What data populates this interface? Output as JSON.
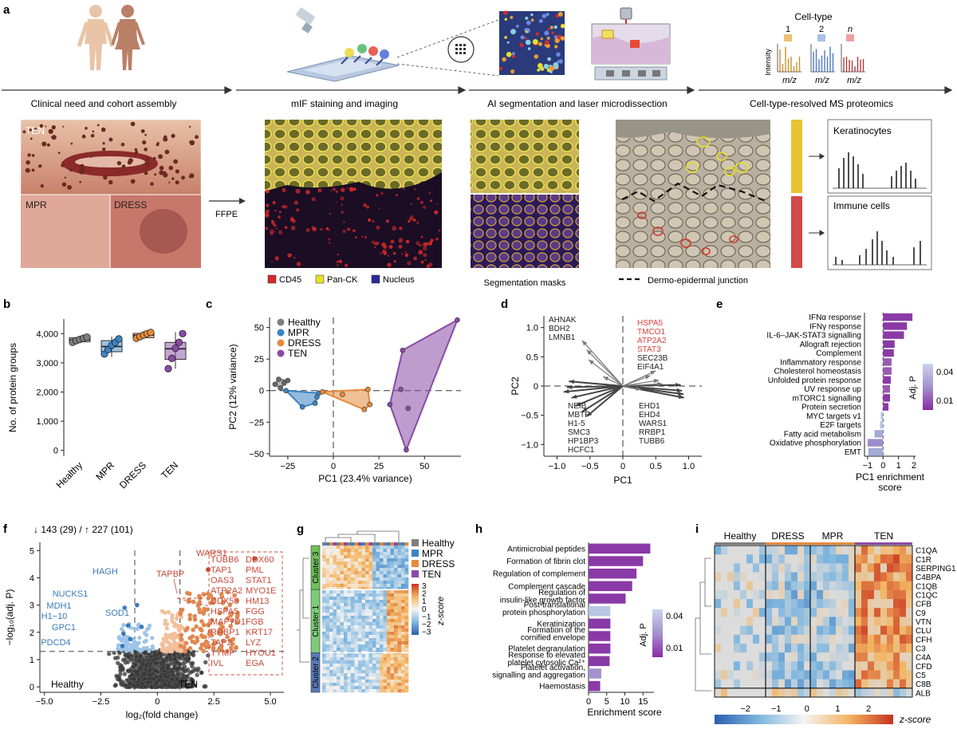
{
  "panel_letters": {
    "a": "a",
    "b": "b",
    "c": "c",
    "d": "d",
    "e": "e",
    "f": "f",
    "g": "g",
    "h": "h",
    "i": "i"
  },
  "workflow": {
    "steps": [
      "Clinical need and cohort assembly",
      "mIF staining and imaging",
      "AI segmentation and laser microdissection",
      "Cell-type-resolved MS proteomics"
    ],
    "cell_type_title": "Cell-type",
    "cell_type_labels": [
      "1",
      "2",
      "n"
    ],
    "intensity_label": "Intensity",
    "mz_label": "m/z",
    "ffpe_label": "FFPE",
    "photo_labels": {
      "ten": "TEN",
      "mpr": "MPR",
      "dress": "DRESS"
    },
    "legend": [
      {
        "label": "CD45",
        "color": "#d42a2a"
      },
      {
        "label": "Pan-CK",
        "color": "#e8e02a"
      },
      {
        "label": "Nucleus",
        "color": "#2a2a9a"
      }
    ],
    "segmentation_caption": "Segmentation masks",
    "junction_caption": "Dermo-epidermal junction",
    "spectra_labels": [
      "Keratinocytes",
      "Immune cells"
    ]
  },
  "panel_b": {
    "type": "box",
    "ylabel": "No. of protein groups",
    "yticks": [
      0,
      1000,
      2000,
      3000,
      4000
    ],
    "ytick_labels": [
      "0",
      "1,000",
      "2,000",
      "3,000",
      "4,000"
    ],
    "ylim": [
      -200,
      4500
    ],
    "groups": [
      {
        "label": "Healthy",
        "color": "#7f7f7f",
        "q1": 3720,
        "median": 3790,
        "q3": 3860,
        "min": 3690,
        "max": 3900,
        "points": [
          3700,
          3760,
          3800,
          3840,
          3880
        ]
      },
      {
        "label": "MPR",
        "color": "#3b84c4",
        "q1": 3380,
        "median": 3560,
        "q3": 3760,
        "min": 3200,
        "max": 3900,
        "points": [
          3300,
          3450,
          3600,
          3700,
          3820
        ]
      },
      {
        "label": "DRESS",
        "color": "#e68a3a",
        "q1": 3860,
        "median": 3950,
        "q3": 4010,
        "min": 3820,
        "max": 4060,
        "points": [
          3840,
          3900,
          3950,
          4000,
          4040
        ]
      },
      {
        "label": "TEN",
        "color": "#8a4aa6",
        "q1": 3120,
        "median": 3480,
        "q3": 3700,
        "min": 2800,
        "max": 4050,
        "points": [
          2800,
          3150,
          3500,
          3700,
          4000
        ]
      }
    ]
  },
  "panel_c": {
    "type": "scatter",
    "xlabel": "PC1 (23.4% variance)",
    "ylabel": "PC2 (12% variance)",
    "xlim": [
      -35,
      70
    ],
    "ylim": [
      -52,
      58
    ],
    "xticks": [
      -25,
      0,
      25,
      50
    ],
    "yticks": [
      -50,
      -25,
      0,
      25,
      50
    ],
    "series": [
      {
        "name": "Healthy",
        "color": "#7f7f7f",
        "points": [
          [
            -32,
            5
          ],
          [
            -30,
            9
          ],
          [
            -29,
            2
          ],
          [
            -27,
            6
          ],
          [
            -25,
            8
          ]
        ]
      },
      {
        "name": "MPR",
        "color": "#3b84c4",
        "points": [
          [
            -26,
            0
          ],
          [
            -17,
            -13
          ],
          [
            -10,
            -10
          ],
          [
            -8,
            -2
          ],
          [
            -9,
            -5
          ]
        ]
      },
      {
        "name": "DRESS",
        "color": "#e68a3a",
        "points": [
          [
            -6,
            -1
          ],
          [
            5,
            -3
          ],
          [
            19,
            1
          ],
          [
            20,
            -11
          ],
          [
            17,
            -15
          ]
        ]
      },
      {
        "name": "TEN",
        "color": "#8a4aa6",
        "points": [
          [
            31,
            -11
          ],
          [
            37,
            1
          ],
          [
            38,
            32
          ],
          [
            40,
            -47
          ],
          [
            41,
            -14
          ],
          [
            68,
            56
          ]
        ]
      }
    ]
  },
  "panel_d": {
    "type": "loading",
    "xlabel": "PC1",
    "ylabel": "PC2",
    "xlim": [
      -1.2,
      1.2
    ],
    "ylim": [
      -1.2,
      1.2
    ],
    "xticks": [
      -1.0,
      -0.5,
      0,
      0.5,
      1.0
    ],
    "yticks": [
      -1.0,
      -0.5,
      0,
      0.5,
      1.0
    ],
    "xtick_labels": [
      "−1.0",
      "−0.5",
      "0",
      "0.5",
      "1.0"
    ],
    "ytick_labels": [
      "−1.0",
      "−0.5",
      "0",
      "0.5",
      "1.0"
    ],
    "label_groups": [
      {
        "lines": [
          "AHNAK",
          "BDH2",
          "LMNB1"
        ],
        "color": "#222222"
      },
      {
        "lines": [
          "HSPA5",
          "TMCO1",
          "ATP2A2",
          "STAT3"
        ],
        "color": "#d94040"
      },
      {
        "lines": [
          "SEC23B",
          "EIF4A1"
        ],
        "color": "#222222"
      },
      {
        "lines": [
          "NEIB",
          "MBTF",
          "H1-5",
          "SMC3",
          "HP1BP3",
          "HCFC1"
        ],
        "color": "#222222"
      },
      {
        "lines": [
          "EHD1",
          "EHD4",
          "WARS1",
          "RRBP1",
          "TUBB6"
        ],
        "color": "#222222"
      }
    ],
    "arrows": [
      [
        -0.62,
        0.78
      ],
      [
        -0.55,
        0.62
      ],
      [
        -0.52,
        0.45
      ],
      [
        0.5,
        0.26
      ],
      [
        0.42,
        0.18
      ],
      [
        0.55,
        0.1
      ],
      [
        -0.9,
        -0.1
      ],
      [
        -0.85,
        -0.02
      ],
      [
        -0.82,
        0.08
      ],
      [
        -0.78,
        -0.2
      ],
      [
        -0.72,
        -0.34
      ],
      [
        -0.62,
        -0.44
      ],
      [
        -0.55,
        -0.52
      ],
      [
        0.92,
        -0.14
      ],
      [
        0.9,
        -0.08
      ],
      [
        0.88,
        0.02
      ],
      [
        0.93,
        -0.2
      ],
      [
        0.6,
        0.04
      ],
      [
        -0.3,
        0.16
      ],
      [
        0.28,
        -0.06
      ]
    ]
  },
  "panel_e": {
    "type": "bar",
    "xlabel": "PC1 enrichment\nscore",
    "xlabel_lines": [
      "PC1 enrichment",
      "score"
    ],
    "xlim": [
      -1.2,
      2.1
    ],
    "xticks": [
      -1,
      0,
      1,
      2
    ],
    "xtick_labels": [
      "−1",
      "0",
      "1",
      "2"
    ],
    "legend_title": "Adj. P",
    "legend_ticks": [
      "0.04",
      "0.01"
    ],
    "categories": [
      "IFNα response",
      "IFNγ response",
      "IL-6–JAK-STAT3 signalling",
      "Allograft rejection",
      "Complement",
      "Inflammatory response",
      "Cholesterol homeostasis",
      "Unfolded protein response",
      "UV response up",
      "mTORC1 signalling",
      "Protein secretion",
      "MYC targets v1",
      "E2F targets",
      "Fatty acid metabolism",
      "Oxidative phosphorylation",
      "EMT"
    ],
    "values": [
      1.9,
      1.55,
      1.35,
      0.75,
      0.7,
      0.55,
      0.55,
      0.5,
      0.45,
      0.45,
      0.35,
      -0.15,
      -0.2,
      -0.55,
      -1.0,
      -0.95
    ],
    "colors": [
      "#8a3aa6",
      "#8a3aa6",
      "#8a3aa6",
      "#8a3aa6",
      "#8a3aa6",
      "#9a5ab4",
      "#9a5ab4",
      "#8a3aa6",
      "#9a5ab4",
      "#8a3aa6",
      "#8a3aa6",
      "#b7c7e4",
      "#b7c7e4",
      "#a3aad6",
      "#9c8ccc",
      "#a3aad6"
    ]
  },
  "panel_f": {
    "type": "volcano",
    "summary": "↓ 143 (29) / ↑ 227 (101)",
    "xlabel": "log₂(fold change)",
    "ylabel": "−log₁₀(adj. P)",
    "xlim": [
      -5.2,
      5.6
    ],
    "ylim": [
      -0.2,
      5.3
    ],
    "xticks": [
      -5.0,
      -2.5,
      0,
      2.5,
      5.0
    ],
    "xtick_labels": [
      "−5.0",
      "−2.5",
      "0",
      "2.5",
      "5.0"
    ],
    "yticks": [
      0,
      1,
      2,
      3,
      4,
      5
    ],
    "left_label": "Healthy",
    "right_label": "TEN",
    "down_genes": [
      {
        "name": "NUCKS1",
        "x": -1.45,
        "y": 2.9
      },
      {
        "name": "HAGH",
        "x": -0.9,
        "y": 3.0
      },
      {
        "name": "MDH1",
        "x": -1.3,
        "y": 2.25
      },
      {
        "name": "SOD1",
        "x": -0.7,
        "y": 2.2
      },
      {
        "name": "H1−10",
        "x": -1.5,
        "y": 1.95
      },
      {
        "name": "GPC1",
        "x": -1.2,
        "y": 1.75
      },
      {
        "name": "PDCD4",
        "x": -1.55,
        "y": 1.5
      }
    ],
    "up_highlight": [
      {
        "name": "WARS1",
        "x": 4.3,
        "y": 4.7
      },
      {
        "name": "TAPBP",
        "x": 2.25,
        "y": 4.3
      }
    ],
    "up_list": [
      [
        "TUBB6",
        "DDX60"
      ],
      [
        "TAP1",
        "PML"
      ],
      [
        "OAS3",
        "STAT1"
      ],
      [
        "ATP2A2",
        "MYO1E"
      ],
      [
        "DDX58",
        "HM13"
      ],
      [
        "HSPA5",
        "FGG"
      ],
      [
        "MAP7D1",
        "FGB"
      ],
      [
        "RRBP1",
        "KRT17"
      ],
      [
        "TAP2",
        "LYZ"
      ],
      [
        "TYMP",
        "HYOU1"
      ],
      [
        "IVL",
        "EGA"
      ]
    ]
  },
  "panel_g": {
    "type": "heatmap",
    "legend": [
      {
        "label": "Healthy",
        "color": "#7f7f7f"
      },
      {
        "label": "MPR",
        "color": "#3b84c4"
      },
      {
        "label": "DRESS",
        "color": "#e68a3a"
      },
      {
        "label": "TEN",
        "color": "#8a4aa6"
      }
    ],
    "clusters": [
      "Cluster 3",
      "Cluster 1",
      "Cluster 2"
    ],
    "zscore_title": "z-score",
    "zscore_ticks": [
      "3",
      "2",
      "1",
      "0",
      "−1",
      "−2",
      "−3"
    ]
  },
  "panel_h": {
    "type": "bar",
    "xlabel": "Enrichment score",
    "xlim": [
      0,
      18
    ],
    "xticks": [
      0,
      5,
      10,
      15
    ],
    "legend_title": "Adj. P",
    "legend_ticks": [
      "0.04",
      "0.01"
    ],
    "categories": [
      [
        "Antimicrobial peptides"
      ],
      [
        "Formation of fibrin clot"
      ],
      [
        "Regulation of complement"
      ],
      [
        "Complement cascade"
      ],
      [
        "Regulation of",
        "insulin-like growth factor"
      ],
      [
        "Post-translational",
        "protein phosphorylation"
      ],
      [
        "Keratinization"
      ],
      [
        "Formation of the",
        "cornified envelope"
      ],
      [
        "Platelet degranulation"
      ],
      [
        "Response to elevated",
        "platelet cytosolic Ca²⁺"
      ],
      [
        "Platelet activation,",
        "signalling and aggregation"
      ],
      [
        "Haemostasis"
      ]
    ],
    "values": [
      17.0,
      15.0,
      13.2,
      12.0,
      10.2,
      6.0,
      6.0,
      6.0,
      6.0,
      5.8,
      3.5,
      3.2
    ],
    "colors": [
      "#8a3aa6",
      "#8a3aa6",
      "#8a3aa6",
      "#8a3aa6",
      "#8a3aa6",
      "#b7c7e4",
      "#8a3aa6",
      "#8a3aa6",
      "#8a3aa6",
      "#8a3aa6",
      "#a592cc",
      "#8a3aa6"
    ]
  },
  "panel_i": {
    "type": "heatmap",
    "groups": [
      {
        "label": "Healthy",
        "color": "#7f7f7f"
      },
      {
        "label": "DRESS",
        "color": "#e68a3a"
      },
      {
        "label": "MPR",
        "color": "#e68a3a"
      },
      {
        "label": "TEN",
        "color": "#8a4aa6"
      }
    ],
    "genes": [
      "C1QA",
      "C1R",
      "SERPING1",
      "C4BPA",
      "C1QB",
      "C1QC",
      "CFB",
      "C9",
      "VTN",
      "CLU",
      "CFH",
      "C3",
      "C4A",
      "CFD",
      "C5",
      "C8B",
      "ALB"
    ],
    "zscore_title": "z-score",
    "zscore_ticks": [
      "−2",
      "−1",
      "0",
      "1",
      "2"
    ]
  }
}
